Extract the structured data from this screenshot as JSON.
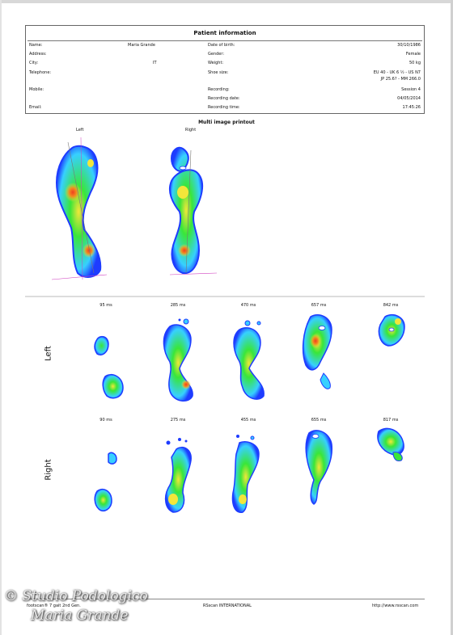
{
  "patient": {
    "title": "Patient information",
    "name_label": "Name:",
    "name_value": "Maria Grande",
    "address_label": "Address:",
    "city_label": "City:",
    "city_value": "IT",
    "telephone_label": "Telephone:",
    "mobile_label": "Mobile:",
    "email_label": "Email:",
    "dob_label": "Date of birth:",
    "dob_value": "30/10/1986",
    "gender_label": "Gender:",
    "gender_value": "Female",
    "weight_label": "Weight:",
    "weight_value": "50 kg",
    "shoe_label": "Shoe size:",
    "shoe_value_1": "EU 40 - UK 6 ½ - US N7",
    "shoe_value_2": "JP 25.6? - MM 266.0",
    "recording_label": "Recording:",
    "recording_value": "Session 4",
    "rec_date_label": "Recording date:",
    "rec_date_value": "04/05/2014",
    "rec_time_label": "Recording time:",
    "rec_time_value": "17:45:26"
  },
  "multi": {
    "title": "Multi image printout",
    "left_label": "Left",
    "right_label": "Right"
  },
  "sequence": {
    "row_left": "Left",
    "row_right": "Right",
    "left_times": [
      "95 ms",
      "285 ms",
      "470 ms",
      "657 ms",
      "842 ms"
    ],
    "right_times": [
      "90 ms",
      "275 ms",
      "455 ms",
      "655 ms",
      "817 ms"
    ]
  },
  "footer": {
    "left": "footscan® 7 gait 2nd Gen.",
    "center": "RSscan INTERNATIONAL",
    "right": "http://www.rsscan.com"
  },
  "watermark": {
    "line1": "© Studio Podologico",
    "line2": "Maria Grande"
  },
  "colors": {
    "pressure_low": "#1e3cff",
    "pressure_mid_low": "#37d0ff",
    "pressure_mid": "#39e639",
    "pressure_high": "#f2e63a",
    "pressure_peak": "#f04020"
  }
}
